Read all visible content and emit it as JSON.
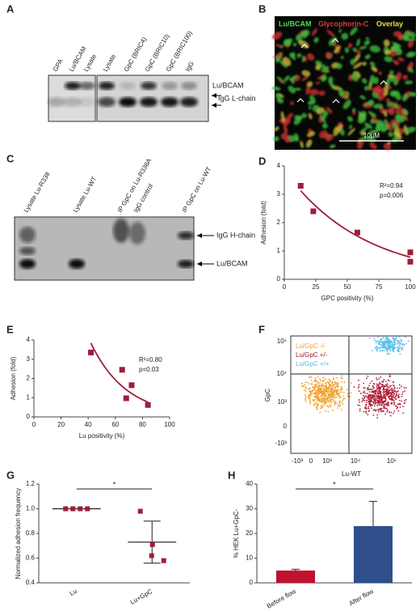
{
  "panels": {
    "A": {
      "label": "A",
      "lanes": [
        "GPA",
        "Lu/BCAM",
        "Lysate",
        "Lysate",
        "GpC (BRIC4)",
        "GpC (BRIC10)",
        "GpC (BRIC100)",
        "IgG"
      ],
      "bands": [
        "Lu/BCAM",
        "IgG L-chain"
      ]
    },
    "B": {
      "label": "B",
      "channels": [
        "Lu/BCAM",
        "Glycophorin-C",
        "Overlay"
      ],
      "scale": "10µM"
    },
    "C": {
      "label": "C",
      "lanes": [
        "Lysate Lu-R338",
        "Lysate Lu-WT",
        "IP GpC on Lu-R338A",
        "IgG control",
        "IP GpC on Lu-WT"
      ],
      "bands": [
        "IgG H-chain",
        "Lu/BCAM"
      ]
    },
    "F": {
      "label": "F",
      "legend": [
        "Lu/GpC -/-",
        "Lu/GpC +/-",
        "Lu/GpC +/+"
      ],
      "y_label": "GpC",
      "x_label": "Lu-WT",
      "yticks": [
        "10⁵",
        "10⁴",
        "10³",
        "0",
        "-10³"
      ],
      "xticks": [
        "-10³",
        "0",
        "10³",
        "10⁴",
        "10⁵"
      ]
    }
  },
  "chart_data": [
    {
      "type": "scatter",
      "panel": "D",
      "x": [
        13,
        23,
        58,
        100,
        100
      ],
      "values": [
        3.3,
        2.4,
        1.65,
        0.95,
        0.62
      ],
      "color": "#9e1d3a",
      "fit": "exponential",
      "annotations": [
        "R²=0.94",
        "p=0.006"
      ],
      "xlabel": "GPC positivity (%)",
      "ylabel": "Adhesion (fold)",
      "xlim": [
        0,
        100
      ],
      "xticks": [
        0,
        25,
        50,
        75,
        100
      ],
      "ylim": [
        0,
        4
      ],
      "yticks": [
        0,
        1,
        2,
        3,
        4
      ]
    },
    {
      "type": "scatter",
      "panel": "E",
      "x": [
        42,
        65,
        72,
        68,
        84
      ],
      "values": [
        3.35,
        2.45,
        1.65,
        0.97,
        0.62
      ],
      "color": "#9e1d3a",
      "fit": "exponential",
      "annotations": [
        "R²=0.80",
        "p=0.03"
      ],
      "xlabel": "Lu positivity (%)",
      "ylabel": "Adhesion (fold)",
      "xlim": [
        0,
        100
      ],
      "xticks": [
        0,
        20,
        40,
        60,
        80,
        100
      ],
      "ylim": [
        0,
        4
      ],
      "yticks": [
        0,
        1,
        2,
        3,
        4
      ]
    },
    {
      "type": "strip",
      "panel": "G",
      "categories": [
        "Lu",
        "Lu+GpC"
      ],
      "values": [
        [
          1,
          1,
          1,
          1
        ],
        [
          0.98,
          0.71,
          0.62,
          0.58
        ]
      ],
      "mean": [
        1,
        0.73
      ],
      "sd": [
        0,
        0.17
      ],
      "color": "#9e1d3a",
      "significance": "*",
      "ylabel": "Normalized adhesion frequency",
      "ylim": [
        0.4,
        1.2
      ],
      "yticks": [
        0.4,
        0.6,
        0.8,
        {
          "value": 1,
          "label": "1.0"
        },
        1.2
      ]
    },
    {
      "type": "bar",
      "panel": "H",
      "categories": [
        "Before flow",
        "After flow"
      ],
      "values": [
        5,
        23
      ],
      "errors": [
        0.5,
        10
      ],
      "colors": [
        "#c0112f",
        "#2e4f8a"
      ],
      "significance": "*",
      "ylabel": "% HEK Lu+GpC-",
      "ylim": [
        0,
        40
      ],
      "yticks": [
        0,
        10,
        20,
        30,
        40
      ]
    }
  ]
}
